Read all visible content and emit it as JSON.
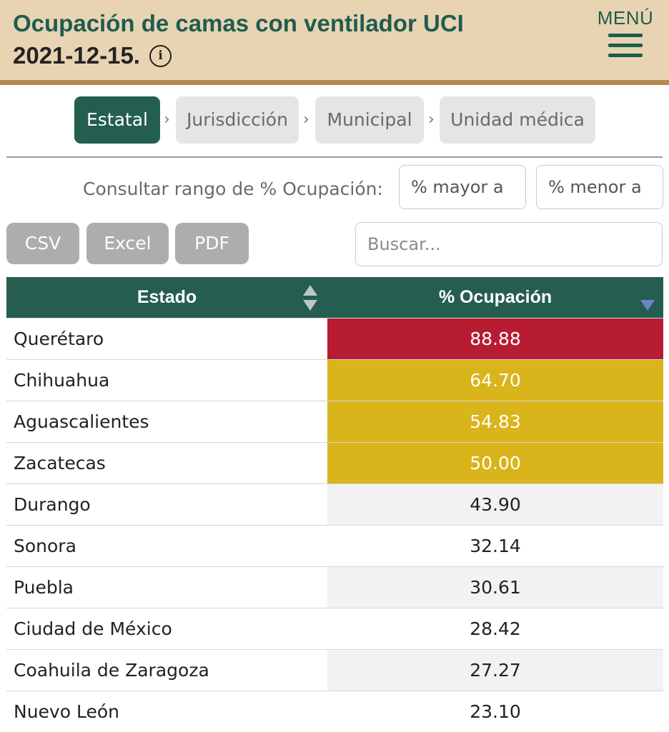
{
  "header": {
    "title": "Ocupación de camas con ventilador UCI",
    "date": "2021-12-15.",
    "info_icon": "info-icon",
    "menu_label": "MENÚ"
  },
  "breadcrumb": {
    "items": [
      "Estatal",
      "Jurisdicción",
      "Municipal",
      "Unidad médica"
    ],
    "separator": "›",
    "active_index": 0
  },
  "range_filter": {
    "label": "Consultar rango de % Ocupación:",
    "min_placeholder": "% mayor a",
    "max_placeholder": "% menor a"
  },
  "export": {
    "csv": "CSV",
    "excel": "Excel",
    "pdf": "PDF"
  },
  "search": {
    "placeholder": "Buscar..."
  },
  "table": {
    "headers": [
      "Estado",
      "% Ocupación"
    ],
    "sort": {
      "column": "% Ocupación",
      "direction": "desc"
    },
    "rows": [
      {
        "name": "Querétaro",
        "value": "88.88",
        "color": "#b71c33"
      },
      {
        "name": "Chihuahua",
        "value": "64.70",
        "color": "#d9b41a"
      },
      {
        "name": "Aguascalientes",
        "value": "54.83",
        "color": "#d9b41a"
      },
      {
        "name": "Zacatecas",
        "value": "50.00",
        "color": "#d9b41a"
      },
      {
        "name": "Durango",
        "value": "43.90",
        "color": ""
      },
      {
        "name": "Sonora",
        "value": "32.14",
        "color": ""
      },
      {
        "name": "Puebla",
        "value": "30.61",
        "color": ""
      },
      {
        "name": "Ciudad de México",
        "value": "28.42",
        "color": ""
      },
      {
        "name": "Coahuila de Zaragoza",
        "value": "27.27",
        "color": ""
      },
      {
        "name": "Nuevo León",
        "value": "23.10",
        "color": ""
      }
    ]
  },
  "colors": {
    "brand_green": "#255d50",
    "header_bg": "#e8d4b2",
    "header_border": "#b48a50",
    "high": "#b71c33",
    "medium": "#d9b41a",
    "sort_active": "#7183c9"
  }
}
